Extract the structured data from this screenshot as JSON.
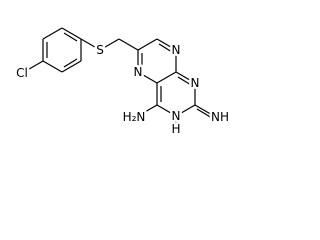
{
  "atoms": [
    {
      "id": "cl",
      "label": "Cl"
    },
    {
      "id": "s",
      "label": "S"
    },
    {
      "id": "n8",
      "label": "N"
    },
    {
      "id": "n5",
      "label": "N"
    },
    {
      "id": "n1",
      "label": "N"
    },
    {
      "id": "n3",
      "label": "N"
    },
    {
      "id": "n3h",
      "label": "H"
    },
    {
      "id": "amine",
      "label": "H₂N"
    },
    {
      "id": "imine",
      "label": "NH"
    }
  ]
}
